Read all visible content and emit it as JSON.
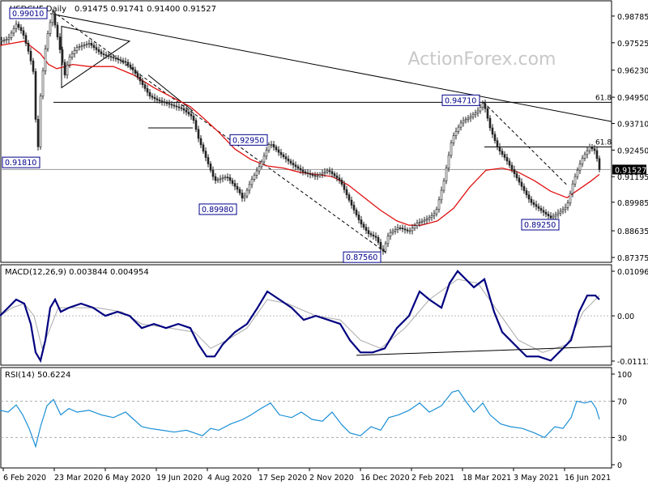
{
  "chart_data": [
    {
      "type": "candlestick",
      "title": "USDCHF,Daily",
      "ohlc_label": "0.91475 0.91741 0.91400 0.91527",
      "watermark": "ActionForex.com",
      "ylim": [
        0.87375,
        0.9878
      ],
      "yticks": [
        "0.98785",
        "0.97525",
        "0.96230",
        "0.94950",
        "0.93710",
        "0.92450",
        "0.91195",
        "0.89985",
        "0.88635",
        "0.87375"
      ],
      "current_price": "0.91527",
      "x_tick_labels": [
        "6 Feb 2020",
        "23 Mar 2020",
        "6 May 2020",
        "19 Jun 2020",
        "4 Aug 2020",
        "17 Sep 2020",
        "2 Nov 2020",
        "16 Dec 2020",
        "2 Feb 2021",
        "18 Mar 2021",
        "3 May 2021",
        "16 Jun 2021"
      ],
      "price_path": [
        [
          0,
          0.976
        ],
        [
          10,
          0.977
        ],
        [
          20,
          0.984
        ],
        [
          28,
          0.98
        ],
        [
          36,
          0.97
        ],
        [
          42,
          0.96
        ],
        [
          46,
          0.9181
        ],
        [
          50,
          0.95
        ],
        [
          55,
          0.97
        ],
        [
          60,
          0.982
        ],
        [
          65,
          0.989
        ],
        [
          70,
          0.98
        ],
        [
          75,
          0.97
        ],
        [
          80,
          0.96
        ],
        [
          85,
          0.968
        ],
        [
          95,
          0.973
        ],
        [
          110,
          0.975
        ],
        [
          125,
          0.97
        ],
        [
          140,
          0.968
        ],
        [
          155,
          0.966
        ],
        [
          165,
          0.962
        ],
        [
          175,
          0.956
        ],
        [
          185,
          0.95
        ],
        [
          195,
          0.948
        ],
        [
          210,
          0.946
        ],
        [
          225,
          0.944
        ],
        [
          238,
          0.94
        ],
        [
          245,
          0.93
        ],
        [
          255,
          0.92
        ],
        [
          265,
          0.91
        ],
        [
          280,
          0.912
        ],
        [
          295,
          0.905
        ],
        [
          300,
          0.901
        ],
        [
          310,
          0.91
        ],
        [
          322,
          0.918
        ],
        [
          333,
          0.928
        ],
        [
          345,
          0.923
        ],
        [
          360,
          0.918
        ],
        [
          375,
          0.914
        ],
        [
          390,
          0.912
        ],
        [
          405,
          0.915
        ],
        [
          420,
          0.91
        ],
        [
          432,
          0.9
        ],
        [
          445,
          0.89
        ],
        [
          455,
          0.885
        ],
        [
          465,
          0.883
        ],
        [
          472,
          0.8756
        ],
        [
          480,
          0.885
        ],
        [
          492,
          0.888
        ],
        [
          505,
          0.886
        ],
        [
          515,
          0.89
        ],
        [
          528,
          0.892
        ],
        [
          538,
          0.895
        ],
        [
          548,
          0.91
        ],
        [
          558,
          0.93
        ],
        [
          570,
          0.938
        ],
        [
          580,
          0.94
        ],
        [
          590,
          0.943
        ],
        [
          597,
          0.9471
        ],
        [
          605,
          0.935
        ],
        [
          615,
          0.925
        ],
        [
          625,
          0.92
        ],
        [
          640,
          0.91
        ],
        [
          655,
          0.9
        ],
        [
          668,
          0.896
        ],
        [
          680,
          0.8925
        ],
        [
          690,
          0.895
        ],
        [
          700,
          0.898
        ],
        [
          708,
          0.91
        ],
        [
          718,
          0.92
        ],
        [
          728,
          0.926
        ],
        [
          735,
          0.924
        ],
        [
          740,
          0.9153
        ]
      ],
      "sma_path": [
        [
          0,
          0.974
        ],
        [
          30,
          0.976
        ],
        [
          50,
          0.97
        ],
        [
          60,
          0.965
        ],
        [
          70,
          0.963
        ],
        [
          90,
          0.965
        ],
        [
          110,
          0.964
        ],
        [
          140,
          0.964
        ],
        [
          165,
          0.96
        ],
        [
          190,
          0.954
        ],
        [
          210,
          0.95
        ],
        [
          235,
          0.945
        ],
        [
          250,
          0.94
        ],
        [
          270,
          0.933
        ],
        [
          290,
          0.925
        ],
        [
          310,
          0.92
        ],
        [
          330,
          0.917
        ],
        [
          350,
          0.916
        ],
        [
          370,
          0.914
        ],
        [
          390,
          0.913
        ],
        [
          410,
          0.912
        ],
        [
          430,
          0.908
        ],
        [
          450,
          0.902
        ],
        [
          470,
          0.896
        ],
        [
          490,
          0.891
        ],
        [
          505,
          0.889
        ],
        [
          520,
          0.889
        ],
        [
          540,
          0.891
        ],
        [
          560,
          0.897
        ],
        [
          580,
          0.907
        ],
        [
          600,
          0.915
        ],
        [
          620,
          0.916
        ],
        [
          640,
          0.914
        ],
        [
          660,
          0.91
        ],
        [
          680,
          0.905
        ],
        [
          700,
          0.902
        ],
        [
          715,
          0.906
        ],
        [
          730,
          0.91
        ],
        [
          740,
          0.913
        ]
      ],
      "price_labels": [
        {
          "text": "0.99010",
          "x": 62,
          "price": 0.9901
        },
        {
          "text": "0.91810",
          "x": 46,
          "price": 0.9181
        },
        {
          "text": "0.92950",
          "x": 333,
          "price": 0.9295
        },
        {
          "text": "0.89980",
          "x": 300,
          "price": 0.8998
        },
        {
          "text": "0.87560",
          "x": 472,
          "price": 0.8756
        },
        {
          "text": "0.94710",
          "x": 597,
          "price": 0.9471
        },
        {
          "text": "0.89250",
          "x": 680,
          "price": 0.8925
        }
      ],
      "fib_labels": [
        {
          "text": "61.8",
          "price": 0.9471
        },
        {
          "text": "61.8",
          "price": 0.926
        }
      ]
    },
    {
      "type": "line",
      "title": "MACD(12,26,9) 0.003844 0.004954",
      "ylim": [
        -0.011127,
        0.010967
      ],
      "yticks": [
        "0.010967",
        "0.00",
        "-0.011127"
      ],
      "series": [
        {
          "name": "MACD",
          "color": "#000080",
          "points": [
            [
              0,
              0.0
            ],
            [
              10,
              0.002
            ],
            [
              20,
              0.004
            ],
            [
              30,
              0.003
            ],
            [
              38,
              -0.002
            ],
            [
              44,
              -0.009
            ],
            [
              50,
              -0.011
            ],
            [
              56,
              -0.006
            ],
            [
              62,
              0.002
            ],
            [
              68,
              0.004
            ],
            [
              75,
              0.001
            ],
            [
              85,
              0.002
            ],
            [
              100,
              0.003
            ],
            [
              115,
              0.002
            ],
            [
              130,
              0.0
            ],
            [
              145,
              0.001
            ],
            [
              160,
              0.0
            ],
            [
              175,
              -0.003
            ],
            [
              190,
              -0.002
            ],
            [
              205,
              -0.003
            ],
            [
              220,
              -0.002
            ],
            [
              235,
              -0.003
            ],
            [
              245,
              -0.007
            ],
            [
              255,
              -0.01
            ],
            [
              265,
              -0.01
            ],
            [
              275,
              -0.007
            ],
            [
              290,
              -0.004
            ],
            [
              305,
              -0.002
            ],
            [
              318,
              0.002
            ],
            [
              330,
              0.006
            ],
            [
              345,
              0.004
            ],
            [
              360,
              0.002
            ],
            [
              375,
              -0.001
            ],
            [
              390,
              0.0
            ],
            [
              405,
              -0.001
            ],
            [
              420,
              -0.002
            ],
            [
              432,
              -0.006
            ],
            [
              445,
              -0.009
            ],
            [
              460,
              -0.009
            ],
            [
              475,
              -0.008
            ],
            [
              490,
              -0.003
            ],
            [
              505,
              0.0
            ],
            [
              518,
              0.006
            ],
            [
              530,
              0.004
            ],
            [
              545,
              0.002
            ],
            [
              555,
              0.008
            ],
            [
              565,
              0.011
            ],
            [
              575,
              0.009
            ],
            [
              585,
              0.007
            ],
            [
              598,
              0.009
            ],
            [
              610,
              0.001
            ],
            [
              620,
              -0.004
            ],
            [
              635,
              -0.007
            ],
            [
              650,
              -0.01
            ],
            [
              665,
              -0.01
            ],
            [
              680,
              -0.011
            ],
            [
              695,
              -0.008
            ],
            [
              705,
              -0.006
            ],
            [
              715,
              0.001
            ],
            [
              725,
              0.005
            ],
            [
              735,
              0.005
            ],
            [
              740,
              0.004
            ]
          ]
        },
        {
          "name": "Signal",
          "color": "#aaaaaa",
          "points": [
            [
              0,
              0.0
            ],
            [
              15,
              0.002
            ],
            [
              30,
              0.003
            ],
            [
              42,
              0.0
            ],
            [
              52,
              -0.008
            ],
            [
              62,
              -0.003
            ],
            [
              72,
              0.002
            ],
            [
              90,
              0.002
            ],
            [
              120,
              0.002
            ],
            [
              150,
              0.001
            ],
            [
              175,
              -0.002
            ],
            [
              210,
              -0.003
            ],
            [
              240,
              -0.004
            ],
            [
              260,
              -0.008
            ],
            [
              280,
              -0.006
            ],
            [
              305,
              -0.003
            ],
            [
              330,
              0.004
            ],
            [
              355,
              0.003
            ],
            [
              390,
              0.0
            ],
            [
              420,
              -0.001
            ],
            [
              445,
              -0.006
            ],
            [
              470,
              -0.008
            ],
            [
              500,
              -0.003
            ],
            [
              530,
              0.004
            ],
            [
              565,
              0.009
            ],
            [
              590,
              0.008
            ],
            [
              615,
              0.001
            ],
            [
              640,
              -0.006
            ],
            [
              670,
              -0.009
            ],
            [
              700,
              -0.007
            ],
            [
              720,
              0.001
            ],
            [
              740,
              0.005
            ]
          ]
        }
      ],
      "trendline": [
        [
          440,
          -0.0097
        ],
        [
          755,
          -0.0075
        ]
      ]
    },
    {
      "type": "line",
      "title": "RSI(14) 50.6224",
      "ylim": [
        0,
        100
      ],
      "yticks": [
        "100",
        "70",
        "30",
        "0"
      ],
      "levels": [
        70,
        30
      ],
      "series": [
        {
          "name": "RSI",
          "color": "#1a8fd6",
          "points": [
            [
              0,
              60
            ],
            [
              10,
              58
            ],
            [
              20,
              66
            ],
            [
              28,
              55
            ],
            [
              36,
              40
            ],
            [
              44,
              20
            ],
            [
              50,
              42
            ],
            [
              58,
              65
            ],
            [
              66,
              72
            ],
            [
              75,
              55
            ],
            [
              85,
              62
            ],
            [
              95,
              58
            ],
            [
              110,
              60
            ],
            [
              125,
              55
            ],
            [
              140,
              52
            ],
            [
              155,
              58
            ],
            [
              165,
              50
            ],
            [
              175,
              42
            ],
            [
              185,
              40
            ],
            [
              200,
              38
            ],
            [
              215,
              36
            ],
            [
              230,
              38
            ],
            [
              240,
              35
            ],
            [
              250,
              32
            ],
            [
              260,
              40
            ],
            [
              270,
              38
            ],
            [
              285,
              45
            ],
            [
              300,
              50
            ],
            [
              310,
              55
            ],
            [
              322,
              62
            ],
            [
              334,
              68
            ],
            [
              345,
              55
            ],
            [
              360,
              52
            ],
            [
              372,
              58
            ],
            [
              385,
              50
            ],
            [
              398,
              48
            ],
            [
              410,
              58
            ],
            [
              422,
              44
            ],
            [
              432,
              35
            ],
            [
              445,
              32
            ],
            [
              458,
              42
            ],
            [
              470,
              38
            ],
            [
              480,
              52
            ],
            [
              492,
              55
            ],
            [
              505,
              60
            ],
            [
              518,
              68
            ],
            [
              530,
              58
            ],
            [
              545,
              65
            ],
            [
              558,
              80
            ],
            [
              566,
              82
            ],
            [
              575,
              70
            ],
            [
              585,
              58
            ],
            [
              596,
              68
            ],
            [
              605,
              55
            ],
            [
              618,
              45
            ],
            [
              630,
              42
            ],
            [
              645,
              40
            ],
            [
              660,
              35
            ],
            [
              672,
              30
            ],
            [
              685,
              42
            ],
            [
              695,
              40
            ],
            [
              705,
              52
            ],
            [
              712,
              70
            ],
            [
              722,
              68
            ],
            [
              730,
              70
            ],
            [
              736,
              62
            ],
            [
              740,
              50
            ]
          ]
        }
      ]
    }
  ]
}
